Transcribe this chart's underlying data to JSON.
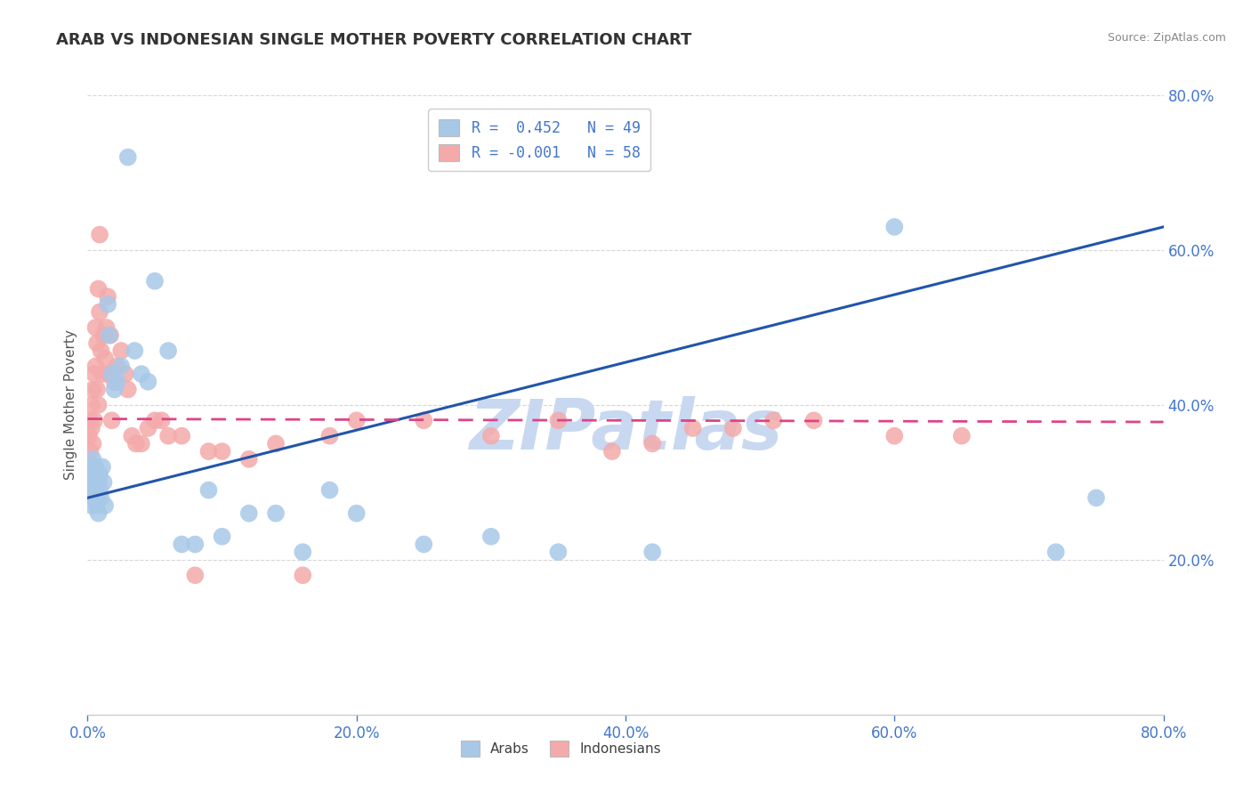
{
  "title": "ARAB VS INDONESIAN SINGLE MOTHER POVERTY CORRELATION CHART",
  "source": "Source: ZipAtlas.com",
  "ylabel": "Single Mother Poverty",
  "legend_labels": [
    "Arabs",
    "Indonesians"
  ],
  "R_arab": 0.452,
  "N_arab": 49,
  "R_indo": -0.001,
  "N_indo": 58,
  "arab_color": "#a8c8e8",
  "indo_color": "#f4aaaa",
  "arab_line_color": "#2255aa",
  "indo_line_color": "#dd4488",
  "title_color": "#333333",
  "source_color": "#888888",
  "label_color": "#4477cc",
  "watermark_color": "#c8d8f0",
  "xlim": [
    0.0,
    0.8
  ],
  "ylim": [
    0.0,
    0.8
  ],
  "xticks": [
    0.0,
    0.2,
    0.4,
    0.6,
    0.8
  ],
  "yticks": [
    0.2,
    0.4,
    0.6,
    0.8
  ],
  "arab_x": [
    0.001,
    0.002,
    0.002,
    0.003,
    0.003,
    0.004,
    0.004,
    0.005,
    0.005,
    0.006,
    0.006,
    0.007,
    0.007,
    0.008,
    0.008,
    0.009,
    0.009,
    0.01,
    0.011,
    0.012,
    0.013,
    0.015,
    0.016,
    0.018,
    0.02,
    0.022,
    0.025,
    0.03,
    0.035,
    0.04,
    0.045,
    0.05,
    0.06,
    0.07,
    0.08,
    0.09,
    0.1,
    0.12,
    0.14,
    0.16,
    0.18,
    0.2,
    0.25,
    0.3,
    0.35,
    0.42,
    0.6,
    0.72,
    0.75
  ],
  "arab_y": [
    0.31,
    0.29,
    0.32,
    0.3,
    0.27,
    0.33,
    0.28,
    0.29,
    0.31,
    0.3,
    0.32,
    0.28,
    0.27,
    0.26,
    0.3,
    0.29,
    0.31,
    0.28,
    0.32,
    0.3,
    0.27,
    0.53,
    0.49,
    0.44,
    0.42,
    0.43,
    0.45,
    0.72,
    0.47,
    0.44,
    0.43,
    0.56,
    0.47,
    0.22,
    0.22,
    0.29,
    0.23,
    0.26,
    0.26,
    0.21,
    0.29,
    0.26,
    0.22,
    0.23,
    0.21,
    0.21,
    0.63,
    0.21,
    0.28
  ],
  "indo_x": [
    0.001,
    0.002,
    0.002,
    0.003,
    0.003,
    0.004,
    0.004,
    0.005,
    0.005,
    0.006,
    0.006,
    0.007,
    0.007,
    0.008,
    0.008,
    0.009,
    0.009,
    0.01,
    0.011,
    0.012,
    0.013,
    0.014,
    0.015,
    0.016,
    0.017,
    0.018,
    0.02,
    0.022,
    0.025,
    0.028,
    0.03,
    0.033,
    0.036,
    0.04,
    0.045,
    0.05,
    0.055,
    0.06,
    0.07,
    0.08,
    0.09,
    0.1,
    0.12,
    0.14,
    0.16,
    0.18,
    0.2,
    0.25,
    0.3,
    0.35,
    0.39,
    0.42,
    0.45,
    0.48,
    0.51,
    0.54,
    0.6,
    0.65
  ],
  "indo_y": [
    0.36,
    0.34,
    0.38,
    0.4,
    0.37,
    0.42,
    0.35,
    0.44,
    0.38,
    0.5,
    0.45,
    0.48,
    0.42,
    0.55,
    0.4,
    0.62,
    0.52,
    0.47,
    0.44,
    0.49,
    0.46,
    0.5,
    0.54,
    0.44,
    0.49,
    0.38,
    0.43,
    0.45,
    0.47,
    0.44,
    0.42,
    0.36,
    0.35,
    0.35,
    0.37,
    0.38,
    0.38,
    0.36,
    0.36,
    0.18,
    0.34,
    0.34,
    0.33,
    0.35,
    0.18,
    0.36,
    0.38,
    0.38,
    0.36,
    0.38,
    0.34,
    0.35,
    0.37,
    0.37,
    0.38,
    0.38,
    0.36,
    0.36
  ],
  "arab_trend_x0": 0.0,
  "arab_trend_y0": 0.28,
  "arab_trend_x1": 0.8,
  "arab_trend_y1": 0.63,
  "indo_trend_x0": 0.0,
  "indo_trend_y0": 0.382,
  "indo_trend_x1": 0.8,
  "indo_trend_y1": 0.378
}
